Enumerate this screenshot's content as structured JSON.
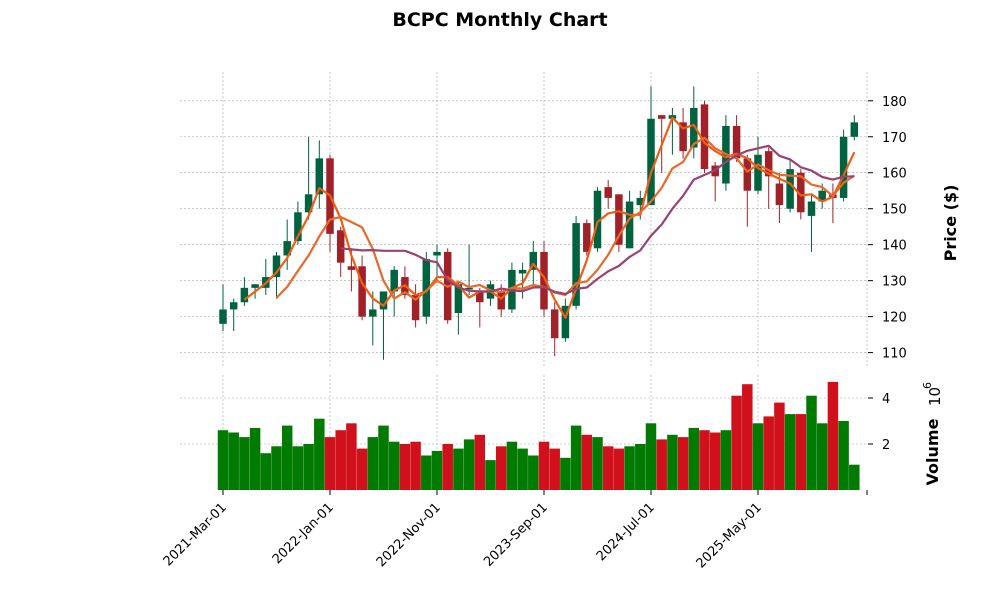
{
  "chart_data": {
    "type": "candlestick",
    "title": "BCPC Monthly Chart",
    "price_axis": {
      "label": "Price ($)",
      "ylim": [
        106,
        188
      ],
      "ticks": [
        110,
        120,
        130,
        140,
        150,
        160,
        170,
        180
      ]
    },
    "volume_axis": {
      "label": "Volume",
      "scale_label": "10",
      "scale_exponent": "6",
      "ylim": [
        0,
        5
      ],
      "ticks": [
        2,
        4
      ],
      "tick_labels": [
        "2",
        "4"
      ]
    },
    "x_ticks": [
      {
        "label": "2021-Mar-01",
        "index": 0
      },
      {
        "label": "2022-Jan-01",
        "index": 10
      },
      {
        "label": "2022-Nov-01",
        "index": 20
      },
      {
        "label": "2023-Sep-01",
        "index": 30
      },
      {
        "label": "2024-Jul-01",
        "index": 40
      },
      {
        "label": "2025-May-01",
        "index": 50
      }
    ],
    "grid": true,
    "colors": {
      "up": "#006340",
      "down": "#a02128",
      "volume_up": "#007a00",
      "volume_down": "#d0101a",
      "ma_short": "#f15c14",
      "ma_mid": "#e86a2a",
      "ma_long": "#9a4272",
      "grid": "#a6a6a6"
    },
    "candles": [
      {
        "date": "2021-Mar",
        "open": 118,
        "high": 129,
        "low": 116,
        "close": 122
      },
      {
        "date": "2021-Apr",
        "open": 122,
        "high": 125,
        "low": 116,
        "close": 124
      },
      {
        "date": "2021-May",
        "open": 124,
        "high": 131,
        "low": 123,
        "close": 128
      },
      {
        "date": "2021-Jun",
        "open": 128,
        "high": 129,
        "low": 125,
        "close": 129
      },
      {
        "date": "2021-Jul",
        "open": 128,
        "high": 136,
        "low": 126,
        "close": 131
      },
      {
        "date": "2021-Aug",
        "open": 131,
        "high": 138,
        "low": 125,
        "close": 137
      },
      {
        "date": "2021-Sep",
        "open": 137,
        "high": 147,
        "low": 133,
        "close": 141
      },
      {
        "date": "2021-Oct",
        "open": 141,
        "high": 152,
        "low": 140,
        "close": 149
      },
      {
        "date": "2021-Nov",
        "open": 149,
        "high": 170,
        "low": 147,
        "close": 154
      },
      {
        "date": "2021-Dec",
        "open": 154,
        "high": 169,
        "low": 150,
        "close": 164
      },
      {
        "date": "2022-Jan",
        "open": 164,
        "high": 165,
        "low": 138,
        "close": 143
      },
      {
        "date": "2022-Feb",
        "open": 144,
        "high": 145,
        "low": 131,
        "close": 135
      },
      {
        "date": "2022-Mar",
        "open": 134,
        "high": 139,
        "low": 127,
        "close": 133
      },
      {
        "date": "2022-Apr",
        "open": 134,
        "high": 137,
        "low": 119,
        "close": 120
      },
      {
        "date": "2022-May",
        "open": 120,
        "high": 127,
        "low": 112,
        "close": 122
      },
      {
        "date": "2022-Jun",
        "open": 122,
        "high": 127,
        "low": 108,
        "close": 127
      },
      {
        "date": "2022-Jul",
        "open": 127,
        "high": 134,
        "low": 120,
        "close": 133
      },
      {
        "date": "2022-Aug",
        "open": 131,
        "high": 134,
        "low": 125,
        "close": 126
      },
      {
        "date": "2022-Sep",
        "open": 126,
        "high": 129,
        "low": 117,
        "close": 119
      },
      {
        "date": "2022-Oct",
        "open": 120,
        "high": 138,
        "low": 118,
        "close": 136
      },
      {
        "date": "2022-Nov",
        "open": 137,
        "high": 140,
        "low": 130,
        "close": 138
      },
      {
        "date": "2022-Dec",
        "open": 138,
        "high": 139,
        "low": 118,
        "close": 119
      },
      {
        "date": "2023-Jan",
        "open": 121,
        "high": 130,
        "low": 115,
        "close": 129
      },
      {
        "date": "2023-Feb",
        "open": 128,
        "high": 140,
        "low": 126,
        "close": 128
      },
      {
        "date": "2023-Mar",
        "open": 127,
        "high": 128,
        "low": 117,
        "close": 124
      },
      {
        "date": "2023-Apr",
        "open": 125,
        "high": 130,
        "low": 123,
        "close": 129
      },
      {
        "date": "2023-May",
        "open": 127,
        "high": 129,
        "low": 120,
        "close": 122
      },
      {
        "date": "2023-Jun",
        "open": 122,
        "high": 135,
        "low": 121,
        "close": 133
      },
      {
        "date": "2023-Jul",
        "open": 132,
        "high": 135,
        "low": 125,
        "close": 133
      },
      {
        "date": "2023-Aug",
        "open": 133,
        "high": 141,
        "low": 129,
        "close": 138
      },
      {
        "date": "2023-Sep",
        "open": 138,
        "high": 141,
        "low": 120,
        "close": 122
      },
      {
        "date": "2023-Oct",
        "open": 122,
        "high": 124,
        "low": 109,
        "close": 114
      },
      {
        "date": "2023-Nov",
        "open": 114,
        "high": 125,
        "low": 113,
        "close": 123
      },
      {
        "date": "2023-Dec",
        "open": 123,
        "high": 148,
        "low": 122,
        "close": 146
      },
      {
        "date": "2024-Jan",
        "open": 146,
        "high": 147,
        "low": 137,
        "close": 138
      },
      {
        "date": "2024-Feb",
        "open": 139,
        "high": 156,
        "low": 138,
        "close": 155
      },
      {
        "date": "2024-Mar",
        "open": 156,
        "high": 158,
        "low": 150,
        "close": 153
      },
      {
        "date": "2024-Apr",
        "open": 154,
        "high": 154,
        "low": 138,
        "close": 140
      },
      {
        "date": "2024-May",
        "open": 139,
        "high": 155,
        "low": 139,
        "close": 152
      },
      {
        "date": "2024-Jun",
        "open": 151,
        "high": 155,
        "low": 147,
        "close": 153
      },
      {
        "date": "2024-Jul",
        "open": 151,
        "high": 184,
        "low": 151,
        "close": 175
      },
      {
        "date": "2024-Aug",
        "open": 176,
        "high": 176,
        "low": 160,
        "close": 175
      },
      {
        "date": "2024-Sep",
        "open": 175,
        "high": 178,
        "low": 165,
        "close": 176
      },
      {
        "date": "2024-Oct",
        "open": 174,
        "high": 178,
        "low": 164,
        "close": 166
      },
      {
        "date": "2024-Nov",
        "open": 167,
        "high": 184,
        "low": 164,
        "close": 178
      },
      {
        "date": "2024-Dec",
        "open": 179,
        "high": 180,
        "low": 160,
        "close": 161
      },
      {
        "date": "2025-Jan",
        "open": 162,
        "high": 163,
        "low": 152,
        "close": 159
      },
      {
        "date": "2025-Feb",
        "open": 157,
        "high": 176,
        "low": 155,
        "close": 173
      },
      {
        "date": "2025-Mar",
        "open": 173,
        "high": 176,
        "low": 163,
        "close": 164
      },
      {
        "date": "2025-Apr",
        "open": 164,
        "high": 165,
        "low": 145,
        "close": 155
      },
      {
        "date": "2025-May",
        "open": 155,
        "high": 170,
        "low": 154,
        "close": 165
      },
      {
        "date": "2025-Jun",
        "open": 166,
        "high": 167,
        "low": 150,
        "close": 159
      },
      {
        "date": "2025-Jul",
        "open": 157,
        "high": 160,
        "low": 146,
        "close": 151
      },
      {
        "date": "2025-Aug",
        "open": 150,
        "high": 164,
        "low": 149,
        "close": 161
      },
      {
        "date": "2025-Sep",
        "open": 160,
        "high": 161,
        "low": 147,
        "close": 149
      },
      {
        "date": "2025-Oct",
        "open": 148,
        "high": 154,
        "low": 138,
        "close": 152
      },
      {
        "date": "2025-Nov",
        "open": 152,
        "high": 157,
        "low": 150,
        "close": 155
      },
      {
        "date": "2025-Dec",
        "open": 154,
        "high": 157,
        "low": 146,
        "close": 153
      },
      {
        "date": "2026-Jan",
        "open": 153,
        "high": 172,
        "low": 152,
        "close": 170
      },
      {
        "date": "2026-Feb",
        "open": 170,
        "high": 176,
        "low": 169,
        "close": 174
      }
    ],
    "volume": [
      2.6,
      2.5,
      2.3,
      2.7,
      1.6,
      1.9,
      2.8,
      1.9,
      2.0,
      3.1,
      2.3,
      2.6,
      2.9,
      1.8,
      2.3,
      2.8,
      2.1,
      2.0,
      2.1,
      1.5,
      1.7,
      2.0,
      1.8,
      2.2,
      2.4,
      1.3,
      1.9,
      2.1,
      1.8,
      1.5,
      2.1,
      1.8,
      1.4,
      2.8,
      2.4,
      2.3,
      1.9,
      1.8,
      1.9,
      2.0,
      2.9,
      2.2,
      2.4,
      2.3,
      2.7,
      2.6,
      2.5,
      2.6,
      4.1,
      4.6,
      2.9,
      3.2,
      3.8,
      3.3,
      3.3,
      4.1,
      2.9,
      4.7,
      3.0,
      1.1
    ],
    "moving_averages": [
      {
        "window": 3,
        "values": [
          null,
          null,
          124.7,
          127.0,
          129.3,
          132.3,
          136.3,
          142.3,
          148.0,
          155.7,
          153.7,
          147.3,
          137.0,
          129.3,
          125.0,
          123.0,
          127.3,
          128.7,
          126.0,
          127.0,
          131.0,
          131.0,
          128.7,
          125.3,
          127.0,
          127.0,
          125.0,
          128.0,
          129.3,
          134.7,
          131.0,
          124.7,
          119.7,
          127.7,
          135.7,
          146.3,
          148.7,
          149.3,
          148.3,
          148.3,
          160.0,
          167.7,
          175.3,
          172.3,
          173.3,
          168.3,
          166.0,
          164.3,
          165.3,
          164.0,
          161.3,
          159.7,
          158.3,
          157.0,
          153.7,
          154.0,
          152.0,
          153.3,
          159.3,
          165.7
        ]
      },
      {
        "window": 6,
        "values": [
          null,
          null,
          null,
          null,
          null,
          125.2,
          128.3,
          132.7,
          137.0,
          142.3,
          147.0,
          147.7,
          146.3,
          144.8,
          138.8,
          130.0,
          125.0,
          126.8,
          124.7,
          127.2,
          130.0,
          128.3,
          129.7,
          128.2,
          128.8,
          127.3,
          126.8,
          128.0,
          127.8,
          128.8,
          128.3,
          126.7,
          126.0,
          129.3,
          129.8,
          133.0,
          137.2,
          142.5,
          147.3,
          149.0,
          152.0,
          155.8,
          161.2,
          163.0,
          168.0,
          169.7,
          166.8,
          165.2,
          164.0,
          160.3,
          162.3,
          160.7,
          159.4,
          159.2,
          159.0,
          156.7,
          156.0,
          153.5,
          157.2,
          159.2
        ]
      },
      {
        "window": 12,
        "values": [
          null,
          null,
          null,
          null,
          null,
          null,
          null,
          null,
          null,
          null,
          null,
          139.0,
          138.7,
          138.4,
          138.5,
          138.3,
          138.3,
          138.3,
          137.2,
          135.7,
          135.1,
          130.2,
          128.1,
          127.2,
          127.0,
          127.0,
          127.8,
          127.3,
          127.1,
          128.1,
          128.2,
          126.9,
          126.3,
          127.7,
          128.1,
          130.5,
          132.6,
          134.1,
          136.6,
          138.4,
          142.5,
          145.6,
          150.0,
          153.6,
          158.1,
          159.4,
          160.7,
          163.0,
          164.8,
          166.1,
          166.8,
          167.5,
          164.7,
          163.7,
          161.5,
          160.6,
          158.8,
          158.1,
          158.9,
          159.0
        ]
      }
    ]
  }
}
